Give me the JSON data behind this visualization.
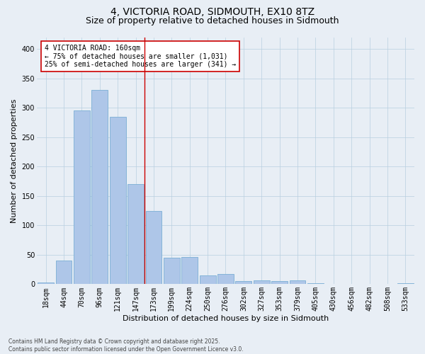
{
  "title": "4, VICTORIA ROAD, SIDMOUTH, EX10 8TZ",
  "subtitle": "Size of property relative to detached houses in Sidmouth",
  "xlabel": "Distribution of detached houses by size in Sidmouth",
  "ylabel": "Number of detached properties",
  "categories": [
    "18sqm",
    "44sqm",
    "70sqm",
    "96sqm",
    "121sqm",
    "147sqm",
    "173sqm",
    "199sqm",
    "224sqm",
    "250sqm",
    "276sqm",
    "302sqm",
    "327sqm",
    "353sqm",
    "379sqm",
    "405sqm",
    "430sqm",
    "456sqm",
    "482sqm",
    "508sqm",
    "533sqm"
  ],
  "values": [
    3,
    40,
    296,
    330,
    284,
    170,
    125,
    45,
    46,
    15,
    17,
    5,
    6,
    5,
    6,
    2,
    0,
    1,
    0,
    0,
    2
  ],
  "bar_color": "#aec6e8",
  "bar_edge_color": "#7aafd4",
  "vline_x": 5.5,
  "vline_color": "#cc0000",
  "annotation_text": "4 VICTORIA ROAD: 160sqm\n← 75% of detached houses are smaller (1,031)\n25% of semi-detached houses are larger (341) →",
  "annotation_box_color": "#ffffff",
  "annotation_box_edge": "#cc0000",
  "grid_color": "#b8cfe0",
  "bg_color": "#e8eef5",
  "footnote": "Contains HM Land Registry data © Crown copyright and database right 2025.\nContains public sector information licensed under the Open Government Licence v3.0.",
  "ylim": [
    0,
    420
  ],
  "yticks": [
    0,
    50,
    100,
    150,
    200,
    250,
    300,
    350,
    400
  ],
  "title_fontsize": 10,
  "subtitle_fontsize": 9,
  "tick_fontsize": 7,
  "ylabel_fontsize": 8,
  "xlabel_fontsize": 8,
  "annot_fontsize": 7,
  "footnote_fontsize": 5.5
}
